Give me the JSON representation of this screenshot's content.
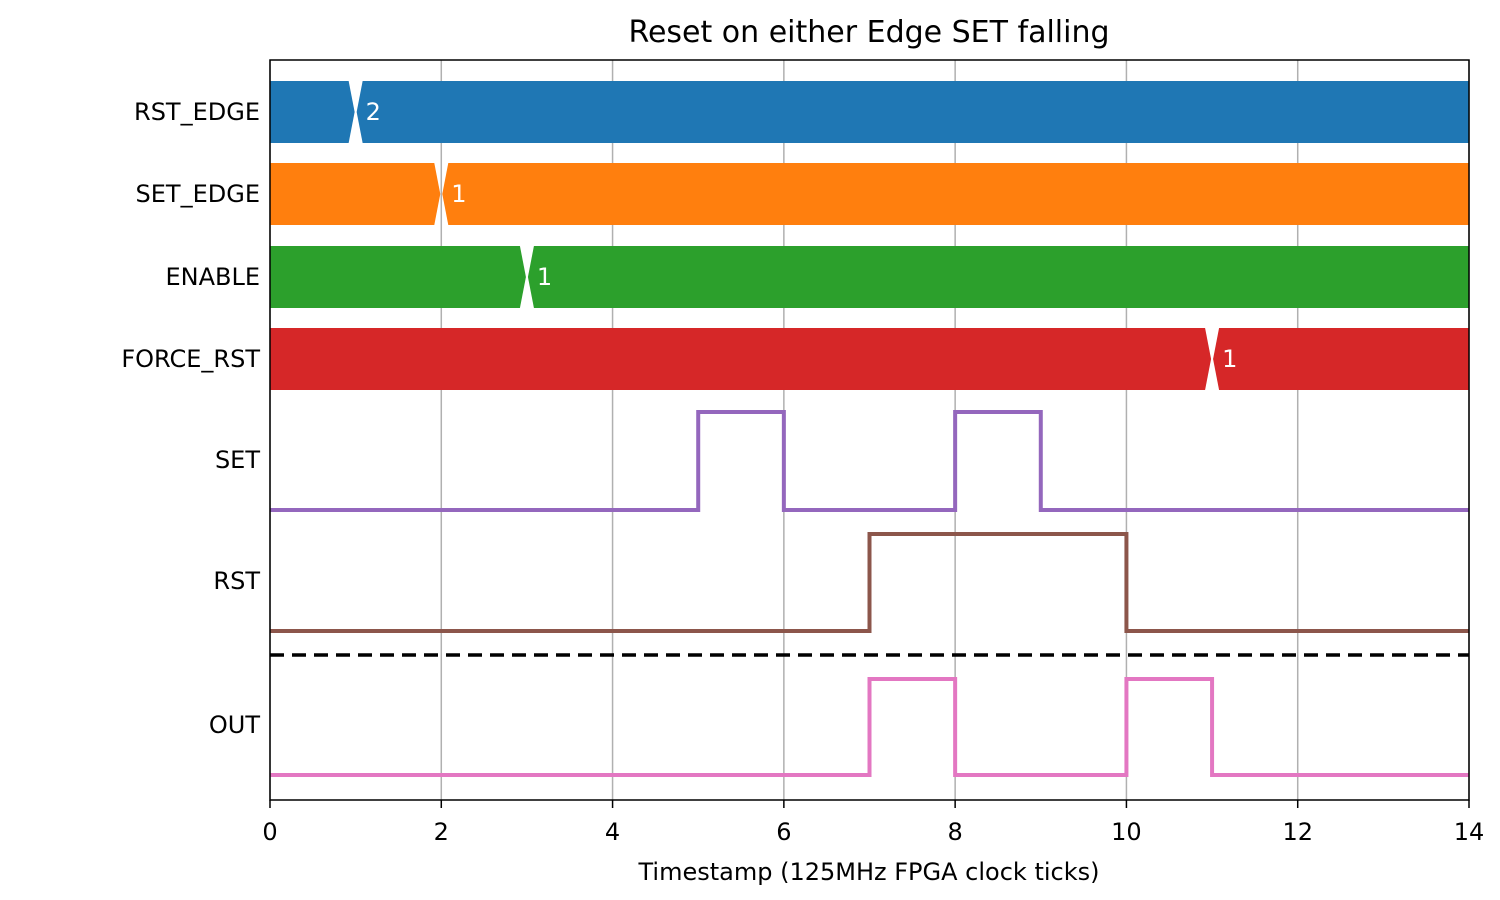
{
  "chart_data": {
    "type": "line",
    "title": "Reset on either Edge SET falling",
    "xlabel": "Timestamp (125MHz FPGA clock ticks)",
    "xlim": [
      0,
      14
    ],
    "xticks": [
      "0",
      "2",
      "4",
      "6",
      "8",
      "10",
      "12",
      "14"
    ],
    "grid": true,
    "buses": [
      {
        "name": "RST_EDGE",
        "color": "#1f77b4",
        "transitions": [
          {
            "x": 1,
            "value": "2"
          }
        ]
      },
      {
        "name": "SET_EDGE",
        "color": "#ff7f0e",
        "transitions": [
          {
            "x": 2,
            "value": "1"
          }
        ]
      },
      {
        "name": "ENABLE",
        "color": "#2ca02c",
        "transitions": [
          {
            "x": 3,
            "value": "1"
          }
        ]
      },
      {
        "name": "FORCE_RST",
        "color": "#d62728",
        "transitions": [
          {
            "x": 11,
            "value": "1"
          }
        ]
      }
    ],
    "signals": [
      {
        "name": "SET",
        "color": "#9467bd",
        "x": [
          0,
          5,
          6,
          8,
          9,
          14
        ],
        "y": [
          0,
          1,
          0,
          1,
          0,
          0
        ]
      },
      {
        "name": "RST",
        "color": "#8c564b",
        "x": [
          0,
          7,
          10,
          14
        ],
        "y": [
          0,
          1,
          0,
          0
        ]
      }
    ],
    "outputs": [
      {
        "name": "OUT",
        "color": "#e377c2",
        "x": [
          0,
          7,
          8,
          10,
          11,
          14
        ],
        "y": [
          0,
          1,
          0,
          1,
          0,
          0
        ]
      }
    ],
    "separator": "dashed"
  }
}
